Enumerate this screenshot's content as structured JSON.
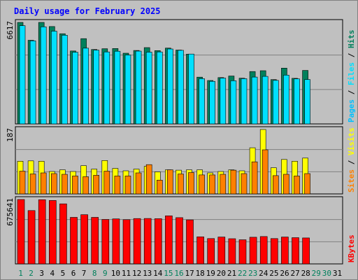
{
  "chart_data": {
    "type": "bar",
    "title": "Daily usage for February 2025",
    "categories": [
      "1",
      "2",
      "3",
      "4",
      "5",
      "6",
      "7",
      "8",
      "9",
      "10",
      "11",
      "12",
      "13",
      "14",
      "15",
      "16",
      "17",
      "18",
      "19",
      "20",
      "21",
      "22",
      "23",
      "24",
      "25",
      "26",
      "27",
      "28",
      "29",
      "30",
      "31"
    ],
    "weekend_days": [
      "1",
      "2",
      "8",
      "9",
      "15",
      "16",
      "22",
      "23",
      "29",
      "30"
    ],
    "panels": [
      {
        "id": "hits-files-pages",
        "max_label": "6617",
        "ylim": [
          0,
          6617
        ],
        "side_labels": [
          "Pages",
          "Files",
          "Hits"
        ],
        "series": [
          {
            "name": "Hits",
            "color": "#00805c",
            "values": [
              6617,
              5455,
              6617,
              6346,
              5880,
              4753,
              5558,
              4850,
              4901,
              4914,
              4607,
              4785,
              4976,
              4778,
              4940,
              4815,
              4548,
              3047,
              2831,
              3019,
              3121,
              2982,
              3414,
              3469,
              2888,
              3638,
              2969,
              3486,
              0,
              0,
              0
            ]
          },
          {
            "name": "Files",
            "color": "#00e0ff",
            "values": [
              6402,
              5418,
              6328,
              6046,
              5781,
              4674,
              4938,
              4811,
              4689,
              4739,
              4491,
              4745,
              4676,
              4691,
              4885,
              4794,
              4553,
              2950,
              2773,
              2985,
              2817,
              2949,
              3052,
              3098,
              2837,
              3183,
              2935,
              2892,
              0,
              0,
              0
            ]
          },
          {
            "name": "Pages",
            "color": "#00c0ff",
            "values": [
              0,
              0,
              0,
              0,
              0,
              0,
              0,
              0,
              0,
              0,
              0,
              0,
              0,
              0,
              0,
              0,
              0,
              0,
              0,
              0,
              0,
              0,
              0,
              0,
              0,
              0,
              0,
              0,
              0,
              0,
              0
            ]
          }
        ]
      },
      {
        "id": "visits-sites",
        "max_label": "187",
        "ylim": [
          0,
          187
        ],
        "side_labels": [
          "Sites",
          "Visits"
        ],
        "series": [
          {
            "name": "Visits",
            "color": "#ffff00",
            "values": [
              95,
              96,
              95,
              65,
              70,
              65,
              82,
              72,
              97,
              74,
              67,
              72,
              80,
              64,
              70,
              69,
              70,
              70,
              61,
              65,
              70,
              67,
              134,
              187,
              76,
              100,
              95,
              104,
              0,
              0,
              0
            ]
          },
          {
            "name": "Sites",
            "color": "#ff8000",
            "values": [
              66,
              58,
              61,
              59,
              57,
              52,
              50,
              54,
              66,
              52,
              52,
              61,
              85,
              40,
              70,
              58,
              62,
              55,
              55,
              57,
              69,
              59,
              93,
              128,
              53,
              57,
              52,
              59,
              0,
              0,
              0
            ]
          }
        ]
      },
      {
        "id": "kbytes",
        "max_label": "675641",
        "ylim": [
          0,
          675641
        ],
        "side_labels": [
          "KBytes"
        ],
        "series": [
          {
            "name": "KBytes",
            "color": "#ff0000",
            "values": [
              675641,
              559543,
              673339,
              665013,
              630296,
              488021,
              516096,
              488021,
              466022,
              472393,
              464271,
              475831,
              476702,
              474373,
              504483,
              485160,
              461732,
              284023,
              265492,
              282288,
              264563,
              253005,
              280080,
              287012,
              265492,
              282288,
              275124,
              272706,
              0,
              0,
              0
            ]
          }
        ]
      }
    ]
  }
}
